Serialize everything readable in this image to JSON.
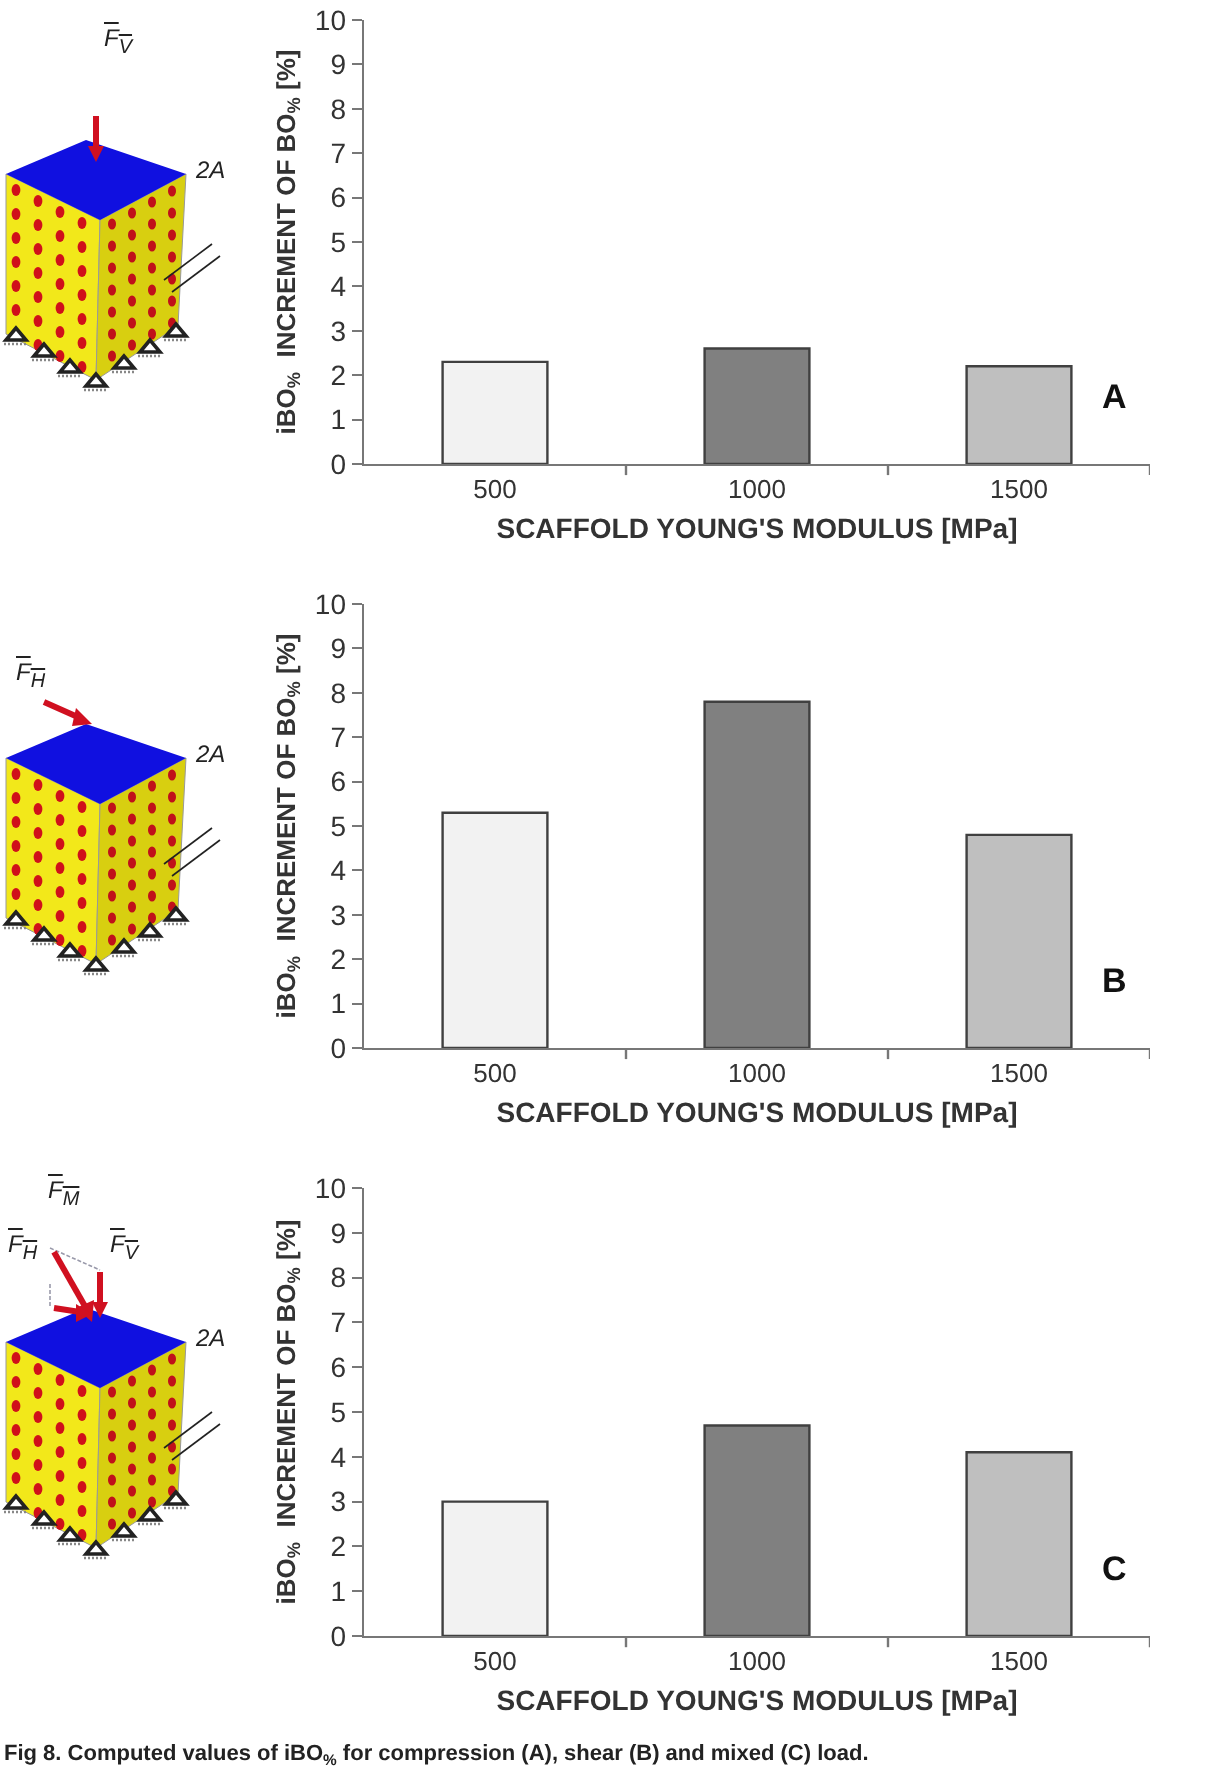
{
  "chart_data": [
    {
      "type": "bar",
      "categories": [
        "500",
        "1000",
        "1500"
      ],
      "values": [
        2.3,
        2.6,
        2.2
      ],
      "colors": [
        "#f2f2f2",
        "#808080",
        "#bfbfbf"
      ],
      "xlabel": "SCAFFOLD YOUNG'S MODULUS [MPa]",
      "ylabel": "iBO$_{%}$  INCREMENT OF BO$_{%}$ [%]",
      "ylim": [
        0,
        10
      ],
      "yticks": [
        0,
        1,
        2,
        3,
        4,
        5,
        6,
        7,
        8,
        9,
        10
      ],
      "grid": false,
      "annotations": [
        "A",
        "F$_{V}$",
        "2A"
      ]
    },
    {
      "type": "bar",
      "categories": [
        "500",
        "1000",
        "1500"
      ],
      "values": [
        5.3,
        7.8,
        4.8
      ],
      "colors": [
        "#f2f2f2",
        "#808080",
        "#bfbfbf"
      ],
      "xlabel": "SCAFFOLD YOUNG'S MODULUS [MPa]",
      "ylabel": "iBO$_{%}$  INCREMENT OF BO$_{%}$ [%]",
      "ylim": [
        0,
        10
      ],
      "yticks": [
        0,
        1,
        2,
        3,
        4,
        5,
        6,
        7,
        8,
        9,
        10
      ],
      "grid": false,
      "annotations": [
        "B",
        "F$_{H}$",
        "2A"
      ]
    },
    {
      "type": "bar",
      "categories": [
        "500",
        "1000",
        "1500"
      ],
      "values": [
        3.0,
        4.7,
        4.1
      ],
      "colors": [
        "#f2f2f2",
        "#808080",
        "#bfbfbf"
      ],
      "xlabel": "SCAFFOLD YOUNG'S MODULUS [MPa]",
      "ylabel": "iBO$_{%}$  INCREMENT OF BO$_{%}$ [%]",
      "ylim": [
        0,
        10
      ],
      "yticks": [
        0,
        1,
        2,
        3,
        4,
        5,
        6,
        7,
        8,
        9,
        10
      ],
      "grid": false,
      "annotations": [
        "C",
        "F$_{M}$",
        "F$_{H}$",
        "F$_{V}$",
        "2A",
        "Fig 8. Computed values of iBO$_{%}$ for compression (A), shear (B) and mixed (C) load."
      ]
    }
  ]
}
